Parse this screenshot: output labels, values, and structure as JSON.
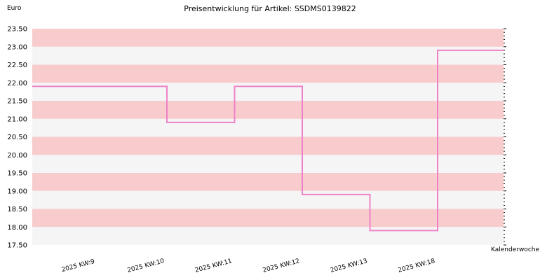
{
  "chart_data": {
    "type": "line",
    "title": "Preisentwicklung für Artikel: SSDMS0139822",
    "ylabel": "Euro",
    "xlabel": "Kalenderwoche",
    "step": true,
    "categories": [
      "2025 KW:9",
      "2025 KW:10",
      "2025 KW:11",
      "2025 KW:12",
      "2025 KW:13",
      "2025 KW:18"
    ],
    "series": [
      {
        "values": [
          21.9,
          20.9,
          21.9,
          18.9,
          17.9,
          22.9
        ]
      }
    ],
    "ylim": [
      17.5,
      23.5
    ],
    "yticks": [
      "17.50",
      "18.00",
      "18.50",
      "19.00",
      "19.50",
      "20.00",
      "20.50",
      "21.00",
      "21.50",
      "22.00",
      "22.50",
      "23.00",
      "23.50"
    ],
    "grid": true,
    "colors": {
      "line": "#ee82c8",
      "band_a": "#f8cccc",
      "band_b": "#f5f5f5"
    }
  }
}
